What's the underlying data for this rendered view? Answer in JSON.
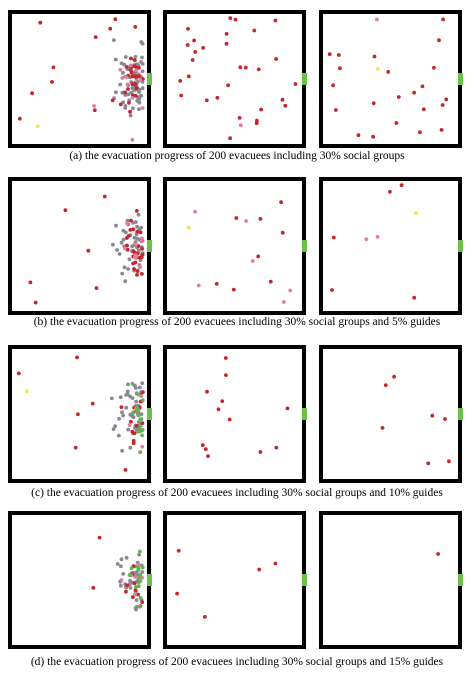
{
  "figure": {
    "captions": [
      "(a) the evacuation progress of 200 evacuees including 30% social groups",
      "(b) the evacuation progress of 200 evacuees including 30% social groups and 5% guides",
      "(c) the evacuation progress of 200 evacuees including 30% social groups and 10% guides",
      "(d) the evacuation progress of 200 evacuees including 30% social groups and 15% guides"
    ]
  }
}
